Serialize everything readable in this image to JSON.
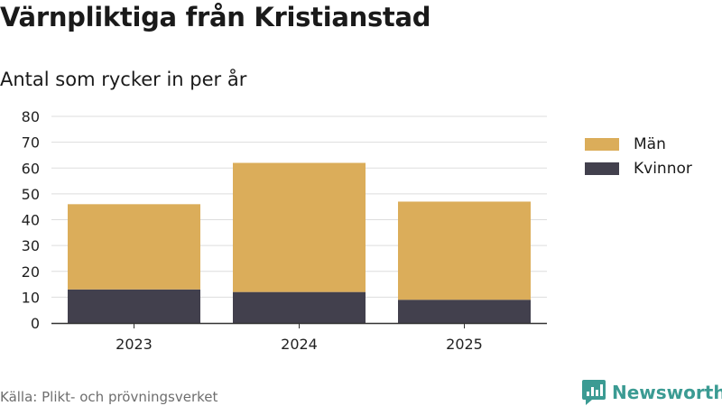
{
  "title": "Värnpliktiga från Kristianstad",
  "subtitle": "Antal som rycker in per år",
  "source": "Källa: Plikt- och prövningsverket",
  "brand": {
    "name": "Newsworthy",
    "color": "#3b9b93"
  },
  "legend": {
    "position": "right",
    "items": [
      {
        "label": "Män",
        "color": "#dbad5a"
      },
      {
        "label": "Kvinnor",
        "color": "#42404d"
      }
    ]
  },
  "chart_data": {
    "type": "bar",
    "stacked": true,
    "categories": [
      "2023",
      "2024",
      "2025"
    ],
    "series": [
      {
        "name": "Kvinnor",
        "color": "#42404d",
        "values": [
          13,
          12,
          9
        ]
      },
      {
        "name": "Män",
        "color": "#dbad5a",
        "values": [
          33,
          50,
          38
        ]
      }
    ],
    "xlabel": "",
    "ylabel": "",
    "ylim": [
      0,
      80
    ],
    "yticks": [
      0,
      10,
      20,
      30,
      40,
      50,
      60,
      70,
      80
    ],
    "grid": true
  }
}
